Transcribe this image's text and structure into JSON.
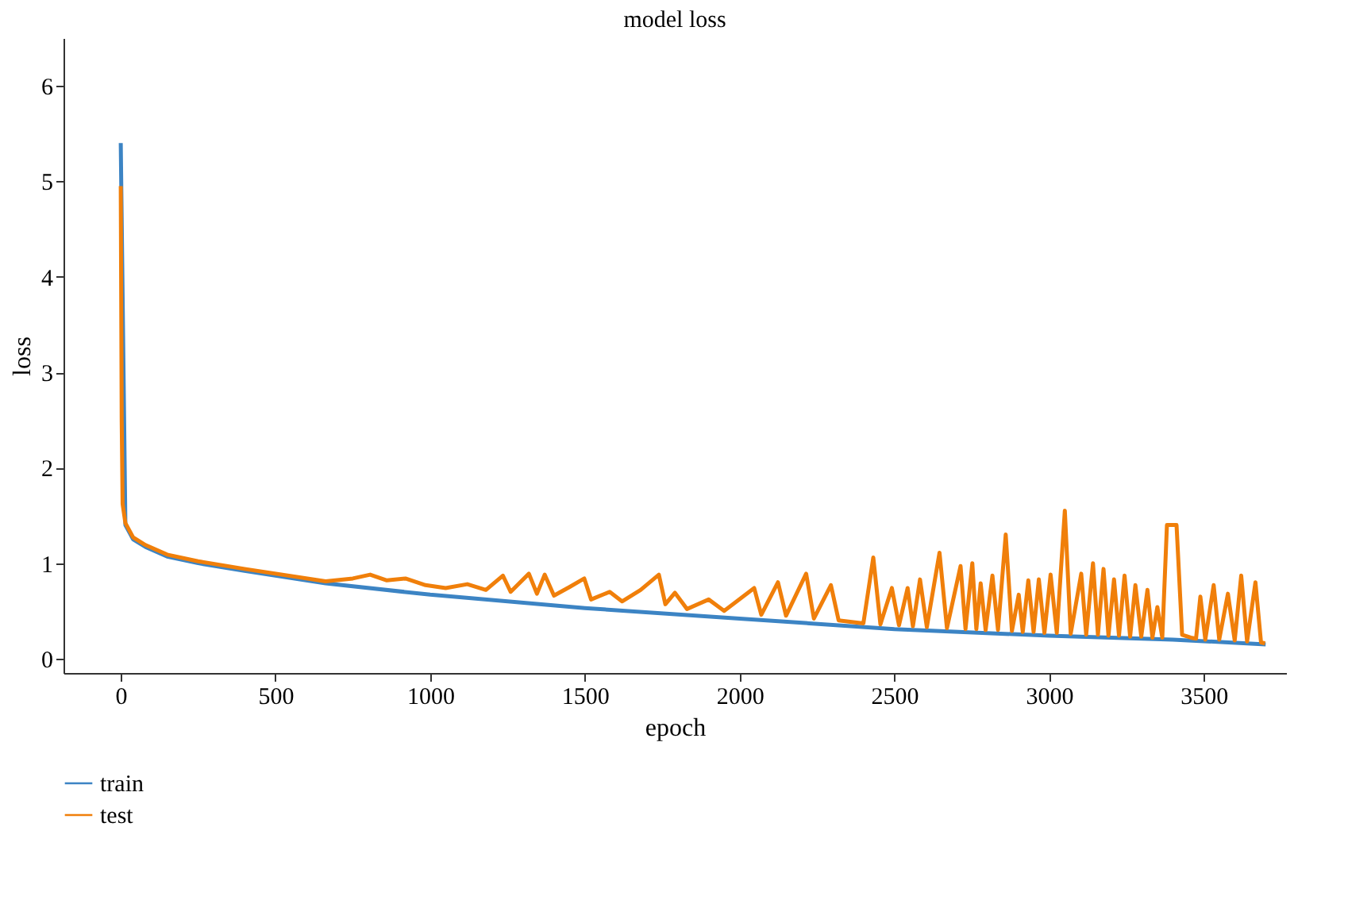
{
  "chart_data": {
    "type": "line",
    "title": "model loss",
    "xlabel": "epoch",
    "ylabel": "loss",
    "xlim": [
      -185,
      3766
    ],
    "ylim": [
      -0.15,
      6.5
    ],
    "xticks": [
      0,
      500,
      1000,
      1500,
      2000,
      2500,
      3000,
      3500
    ],
    "yticks": [
      0,
      1,
      2,
      3,
      4,
      5,
      6
    ],
    "grid": false,
    "legend": "bottom",
    "marker": "none",
    "line_style": "solid",
    "series": [
      {
        "name": "train",
        "color": "#3c84c4",
        "x": [
          0,
          15,
          40,
          80,
          150,
          250,
          400,
          662,
          1000,
          1500,
          2000,
          2500,
          3000,
          3400,
          3700
        ],
        "values": [
          5.4,
          1.4,
          1.25,
          1.17,
          1.07,
          1.0,
          0.92,
          0.79,
          0.67,
          0.53,
          0.42,
          0.31,
          0.24,
          0.2,
          0.15
        ]
      },
      {
        "name": "test",
        "color": "#f07f0a",
        "x": [
          0,
          3,
          6,
          15,
          40,
          80,
          150,
          250,
          400,
          662,
          750,
          806,
          860,
          920,
          985,
          1050,
          1120,
          1180,
          1235,
          1260,
          1319,
          1345,
          1370,
          1400,
          1450,
          1498,
          1520,
          1580,
          1620,
          1680,
          1739,
          1760,
          1791,
          1830,
          1900,
          1950,
          2047,
          2070,
          2124,
          2150,
          2215,
          2240,
          2295,
          2320,
          2400,
          2432,
          2455,
          2492,
          2515,
          2543,
          2560,
          2583,
          2605,
          2646,
          2670,
          2714,
          2730,
          2752,
          2765,
          2779,
          2795,
          2817,
          2835,
          2860,
          2880,
          2902,
          2915,
          2933,
          2950,
          2967,
          2985,
          3005,
          3025,
          3051,
          3070,
          3104,
          3120,
          3142,
          3158,
          3176,
          3192,
          3210,
          3226,
          3244,
          3262,
          3279,
          3298,
          3318,
          3334,
          3350,
          3366,
          3381,
          3412,
          3430,
          3458,
          3475,
          3489,
          3505,
          3532,
          3550,
          3578,
          3600,
          3621,
          3640,
          3667,
          3685,
          3698
        ],
        "values": [
          4.95,
          2.5,
          1.62,
          1.42,
          1.27,
          1.19,
          1.09,
          1.02,
          0.94,
          0.81,
          0.84,
          0.88,
          0.82,
          0.84,
          0.77,
          0.74,
          0.78,
          0.72,
          0.87,
          0.7,
          0.89,
          0.68,
          0.88,
          0.66,
          0.75,
          0.84,
          0.62,
          0.7,
          0.6,
          0.72,
          0.88,
          0.57,
          0.69,
          0.52,
          0.62,
          0.5,
          0.74,
          0.46,
          0.8,
          0.45,
          0.89,
          0.42,
          0.77,
          0.4,
          0.37,
          1.06,
          0.36,
          0.74,
          0.35,
          0.74,
          0.34,
          0.83,
          0.33,
          1.11,
          0.32,
          0.97,
          0.31,
          1.0,
          0.31,
          0.79,
          0.3,
          0.87,
          0.3,
          1.3,
          0.29,
          0.67,
          0.28,
          0.82,
          0.28,
          0.83,
          0.27,
          0.88,
          0.27,
          1.55,
          0.26,
          0.89,
          0.25,
          1.0,
          0.25,
          0.94,
          0.24,
          0.83,
          0.24,
          0.87,
          0.23,
          0.77,
          0.23,
          0.72,
          0.22,
          0.54,
          0.22,
          1.4,
          1.4,
          0.25,
          0.22,
          0.21,
          0.65,
          0.2,
          0.77,
          0.2,
          0.68,
          0.19,
          0.87,
          0.18,
          0.8,
          0.17,
          0.16
        ]
      }
    ]
  }
}
